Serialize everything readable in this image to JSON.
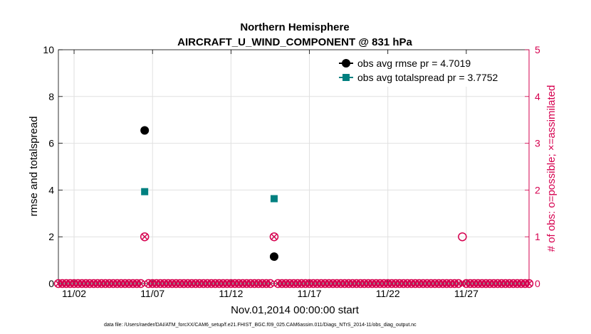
{
  "chart_data": {
    "type": "scatter",
    "title": "Northern Hemisphere",
    "subtitle": "AIRCRAFT_U_WIND_COMPONENT @ 831 hPa",
    "xlabel": "Nov.01,2014 00:00:00 start",
    "ylabel": "rmse and totalspread",
    "y2label": "# of obs: o=possible; ×=assimilated",
    "footnote": "data file: /Users/raeder/DAI/ATM_forcXX/CAM6_setup/f.e21.FHIST_BGC.f09_025.CAM6assim.011/Diags_NTrS_2014-11/obs_diag_output.nc",
    "xlim": [
      0,
      30
    ],
    "ylim": [
      0,
      10
    ],
    "y2lim": [
      0,
      5
    ],
    "x_tick_labels": [
      "11/02",
      "11/07",
      "11/12",
      "11/17",
      "11/22",
      "11/27"
    ],
    "x_tick_values": [
      1,
      6,
      11,
      16,
      21,
      26
    ],
    "y_ticks": [
      0,
      2,
      4,
      6,
      8,
      10
    ],
    "y2_ticks": [
      0,
      1,
      2,
      3,
      4,
      5
    ],
    "grid": true,
    "legend_position": "top-right",
    "colors": {
      "rmse": "#000000",
      "spread": "#008080",
      "obs": "#d6004f"
    },
    "series": [
      {
        "name": "obs avg rmse pr = 4.7019",
        "marker": "circle",
        "x": [
          5.5,
          13.75
        ],
        "y": [
          6.55,
          1.15
        ]
      },
      {
        "name": "obs avg totalspread pr = 3.7752",
        "marker": "square",
        "x": [
          5.5,
          13.75
        ],
        "y": [
          3.93,
          3.63
        ]
      }
    ],
    "obs_counts": {
      "x_start": 0,
      "x_step": 0.25,
      "n_bins": 121,
      "nonzero": [
        {
          "x": 5.5,
          "possible": 1,
          "assimilated": 1
        },
        {
          "x": 13.75,
          "possible": 1,
          "assimilated": 1
        },
        {
          "x": 25.75,
          "possible": 1,
          "assimilated": 0
        }
      ]
    }
  }
}
